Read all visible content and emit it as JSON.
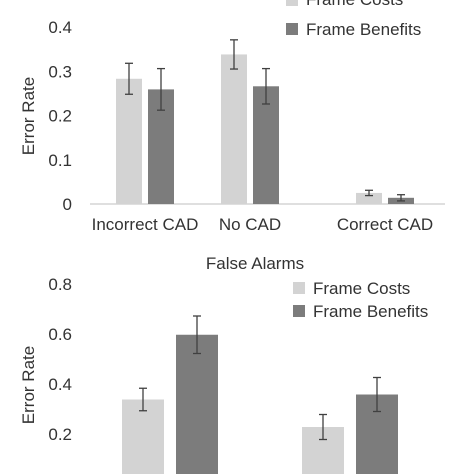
{
  "chart_data": [
    {
      "type": "bar",
      "title": "",
      "ylabel": "Error Rate",
      "ylim": [
        0,
        0.4
      ],
      "yticks": [
        "0",
        "0.1",
        "0.2",
        "0.3",
        "0.4"
      ],
      "categories": [
        "Incorrect CAD",
        "No CAD",
        "Correct CAD"
      ],
      "series": [
        {
          "name": "Frame Costs",
          "color": "#d3d3d3",
          "values": [
            0.283,
            0.338,
            0.025
          ],
          "errors": [
            0.035,
            0.033,
            0.006
          ]
        },
        {
          "name": "Frame Benefits",
          "color": "#7c7c7c",
          "values": [
            0.259,
            0.266,
            0.014
          ],
          "errors": [
            0.047,
            0.04,
            0.007
          ]
        }
      ],
      "legend": "top-right"
    },
    {
      "type": "bar",
      "title": "False Alarms",
      "ylabel": "Error Rate",
      "ylim": [
        0,
        0.8
      ],
      "yticks": [
        "0.2",
        "0.4",
        "0.6",
        "0.8"
      ],
      "categories": [
        "",
        ""
      ],
      "series": [
        {
          "name": "Frame Costs",
          "color": "#d3d3d3",
          "values": [
            0.338,
            0.228
          ],
          "errors": [
            0.045,
            0.05
          ]
        },
        {
          "name": "Frame Benefits",
          "color": "#7c7c7c",
          "values": [
            0.597,
            0.358
          ],
          "errors": [
            0.075,
            0.068
          ]
        }
      ],
      "legend": "top-right"
    }
  ]
}
